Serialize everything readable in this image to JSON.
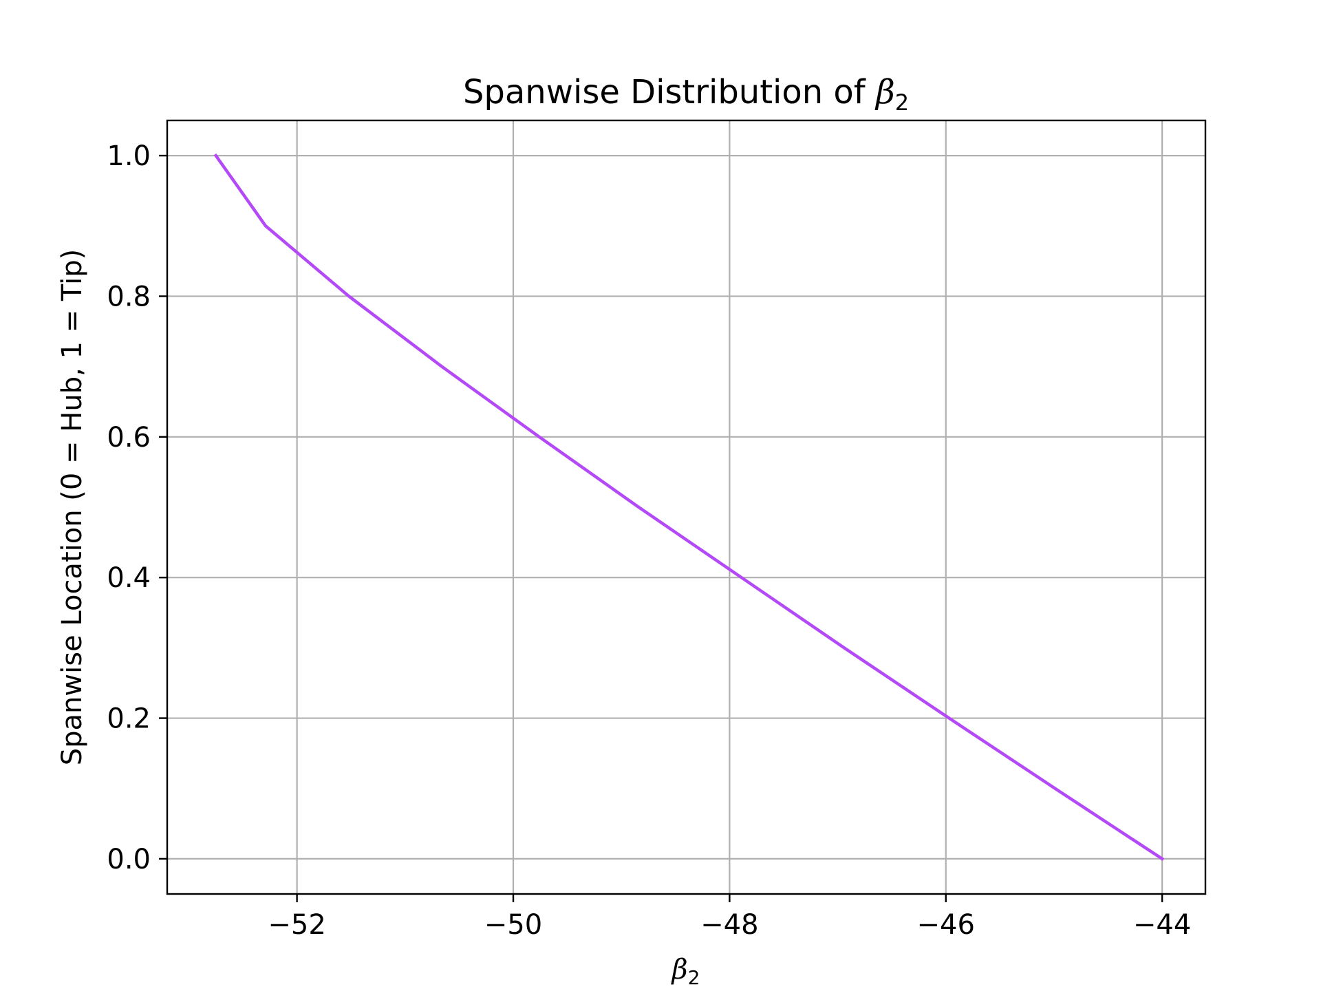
{
  "chart_data": {
    "type": "line",
    "title": "Spanwise Distribution of β₂",
    "title_text": "Spanwise Distribution of ",
    "title_symbol": "β",
    "title_subscript": "2",
    "xlabel_symbol": "β",
    "xlabel_subscript": "2",
    "ylabel": "Spanwise Location (0 = Hub, 1 = Tip)",
    "xlim": [
      -53.2,
      -43.6
    ],
    "ylim": [
      -0.05,
      1.05
    ],
    "grid": true,
    "x_ticks": [
      -52,
      -50,
      -48,
      -46,
      -44
    ],
    "x_tick_labels": [
      "−52",
      "−50",
      "−48",
      "−46",
      "−44"
    ],
    "y_ticks": [
      0.0,
      0.2,
      0.4,
      0.6,
      0.8,
      1.0
    ],
    "y_tick_labels": [
      "0.0",
      "0.2",
      "0.4",
      "0.6",
      "0.8",
      "1.0"
    ],
    "series": [
      {
        "color": "#b44af7",
        "x": [
          -44.0,
          -44.99,
          -45.97,
          -46.94,
          -47.89,
          -48.84,
          -49.76,
          -50.66,
          -51.52,
          -52.29,
          -52.75
        ],
        "y": [
          0.0,
          0.1,
          0.2,
          0.3,
          0.4,
          0.5,
          0.6,
          0.7,
          0.8,
          0.9,
          1.0
        ]
      }
    ]
  }
}
